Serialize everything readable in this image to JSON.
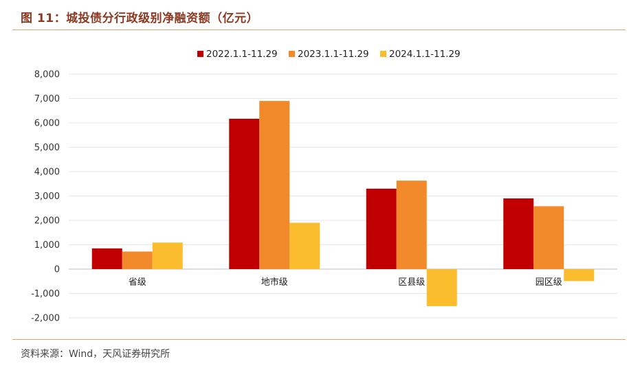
{
  "header": {
    "title": "图 11：城投债分行政级别净融资额（亿元）"
  },
  "footer": {
    "source": "资料来源：Wind，天风证券研究所"
  },
  "chart_data": {
    "type": "bar",
    "title": "",
    "xlabel": "",
    "ylabel": "",
    "categories": [
      "省级",
      "地市级",
      "区县级",
      "园区级"
    ],
    "series": [
      {
        "name": "2022.1.1-11.29",
        "color": "#c00000",
        "values": [
          850,
          6170,
          3300,
          2900
        ]
      },
      {
        "name": "2023.1.1-11.29",
        "color": "#f28a2b",
        "values": [
          720,
          6900,
          3630,
          2580
        ]
      },
      {
        "name": "2024.1.1-11.29",
        "color": "#fbbd2e",
        "values": [
          1090,
          1900,
          -1520,
          -490
        ]
      }
    ],
    "ylim": [
      -2000,
      8000
    ],
    "yticks": [
      -2000,
      -1000,
      0,
      1000,
      2000,
      3000,
      4000,
      5000,
      6000,
      7000,
      8000
    ],
    "ytick_labels": [
      "-2,000",
      "-1,000",
      "0",
      "1,000",
      "2,000",
      "3,000",
      "4,000",
      "5,000",
      "6,000",
      "7,000",
      "8,000"
    ],
    "grid": true,
    "legend_position": "top-center"
  }
}
